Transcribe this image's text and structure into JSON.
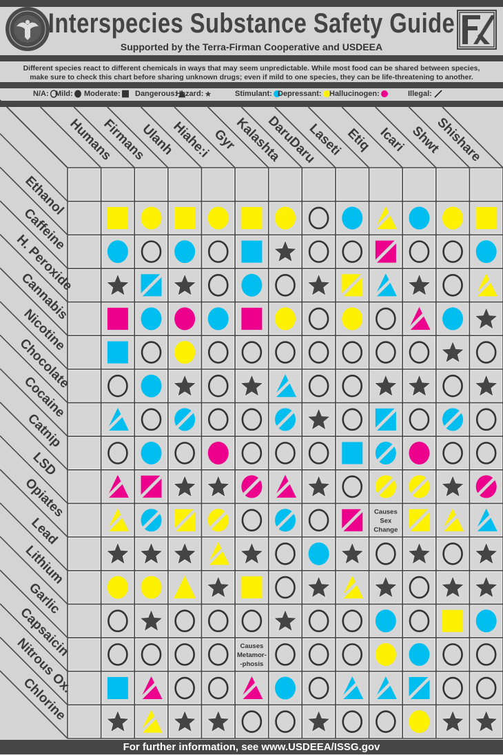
{
  "header": {
    "title": "Interspecies Substance Safety Guide",
    "subtitle": "Supported by the Terra-Firman Cooperative and USDEEA",
    "left_logo": "U.S. Department of Extraterrestrial Affairs seal",
    "right_logo": "TF monogram"
  },
  "description": {
    "line1": "Different species react to different chemicals in ways that may seem unpredictable. While most food can be shared between species,",
    "line2": "make sure to check this chart before sharing unknown drugs; even if mild to one species, they can be life-threatening to another."
  },
  "legend": {
    "levels": [
      {
        "label": "N/A:",
        "icon": "empty-circle"
      },
      {
        "label": "Mild:",
        "icon": "filled-circle"
      },
      {
        "label": "Moderate:",
        "icon": "filled-square"
      },
      {
        "label": "Dangerous:",
        "icon": "filled-triangle"
      },
      {
        "label": "Hazard:",
        "icon": "star"
      }
    ],
    "categories": [
      {
        "label": "Stimulant:",
        "color": "#00bff0"
      },
      {
        "label": "Depressant:",
        "color": "#fff200"
      },
      {
        "label": "Hallucinogen:",
        "color": "#ec008c"
      }
    ],
    "illegal": {
      "label": "Illegal:",
      "icon": "slash"
    }
  },
  "colors": {
    "stimulant": "#00bff0",
    "depressant": "#fff200",
    "hallucinogen": "#ec008c",
    "hazard": "#444444",
    "na": "#333333"
  },
  "footer": {
    "text": "For further information, see www.USDEEA/ISSG.gov"
  },
  "chart_data": {
    "type": "table",
    "columns": [
      "Humans",
      "Firmans",
      "Ulanh",
      "Hiahe:i",
      "Gyr",
      "Kalashta",
      "DaruDaru",
      "Laseti",
      "Etiq",
      "Icari",
      "Shwt",
      "Shishare"
    ],
    "rows": [
      {
        "substance": "Ethanol",
        "cells": [
          "moderate depressant",
          "mild depressant",
          "moderate depressant",
          "mild depressant",
          "moderate depressant",
          "mild depressant",
          "na",
          "mild stimulant",
          "dangerous depressant illegal",
          "mild stimulant",
          "mild depressant",
          "moderate depressant"
        ]
      },
      {
        "substance": "Caffeine",
        "cells": [
          "mild stimulant",
          "na",
          "mild stimulant",
          "na",
          "moderate stimulant",
          "hazard",
          "na",
          "na",
          "moderate hallucinogen illegal",
          "na",
          "na",
          "mild stimulant"
        ]
      },
      {
        "substance": "H. Peroxide",
        "cells": [
          "hazard",
          "moderate stimulant illegal",
          "hazard",
          "na",
          "mild stimulant",
          "na",
          "hazard",
          "moderate depressant illegal",
          "dangerous stimulant illegal",
          "hazard",
          "na",
          "dangerous depressant illegal"
        ]
      },
      {
        "substance": "Cannabis",
        "cells": [
          "moderate hallucinogen",
          "mild stimulant",
          "mild hallucinogen",
          "mild stimulant",
          "moderate hallucinogen",
          "mild depressant",
          "na",
          "mild depressant",
          "na",
          "dangerous hallucinogen illegal",
          "mild stimulant",
          "hazard"
        ]
      },
      {
        "substance": "Nicotine",
        "cells": [
          "moderate stimulant",
          "na",
          "mild depressant",
          "na",
          "na",
          "na",
          "na",
          "na",
          "na",
          "na",
          "hazard",
          "na"
        ]
      },
      {
        "substance": "Chocolate",
        "cells": [
          "na",
          "mild stimulant",
          "hazard",
          "na",
          "hazard",
          "dangerous stimulant illegal",
          "na",
          "na",
          "hazard",
          "hazard",
          "na",
          "hazard"
        ]
      },
      {
        "substance": "Cocaine",
        "cells": [
          "dangerous stimulant illegal",
          "na",
          "mild stimulant illegal",
          "na",
          "na",
          "mild stimulant illegal",
          "hazard",
          "na",
          "moderate stimulant illegal",
          "na",
          "mild stimulant illegal",
          "na"
        ]
      },
      {
        "substance": "Catnip",
        "cells": [
          "na",
          "mild stimulant",
          "na",
          "mild hallucinogen",
          "na",
          "na",
          "na",
          "moderate stimulant",
          "mild stimulant illegal",
          "mild hallucinogen",
          "na",
          "na"
        ]
      },
      {
        "substance": "LSD",
        "cells": [
          "dangerous hallucinogen illegal",
          "moderate hallucinogen illegal",
          "hazard",
          "hazard",
          "mild hallucinogen illegal",
          "dangerous hallucinogen illegal",
          "hazard",
          "na",
          "mild depressant illegal",
          "mild depressant illegal",
          "hazard",
          "mild hallucinogen illegal"
        ]
      },
      {
        "substance": "Opiates",
        "cells": [
          "dangerous depressant illegal",
          "mild stimulant illegal",
          "moderate depressant illegal",
          "mild depressant illegal",
          "na",
          "mild stimulant illegal",
          "na",
          "moderate hallucinogen illegal",
          {
            "note": [
              "Causes",
              "Sex",
              "Change"
            ]
          },
          "moderate depressant illegal",
          "dangerous depressant illegal",
          "dangerous stimulant illegal"
        ]
      },
      {
        "substance": "Lead",
        "cells": [
          "hazard",
          "hazard",
          "hazard",
          "dangerous depressant illegal",
          "hazard",
          "na",
          "mild stimulant",
          "hazard",
          "na",
          "hazard",
          "na",
          "hazard"
        ]
      },
      {
        "substance": "Lithium",
        "cells": [
          "mild depressant",
          "mild depressant",
          "dangerous depressant",
          "hazard",
          "moderate depressant",
          "na",
          "hazard",
          "dangerous depressant illegal",
          "hazard",
          "na",
          "hazard",
          "hazard"
        ]
      },
      {
        "substance": "Garlic",
        "cells": [
          "na",
          "hazard",
          "na",
          "na",
          "na",
          "hazard",
          "na",
          "na",
          "mild stimulant",
          "na",
          "moderate depressant",
          "mild stimulant"
        ]
      },
      {
        "substance": "Capsaicin",
        "cells": [
          "na",
          "na",
          "na",
          "na",
          {
            "note": [
              "Causes",
              "Metamor-",
              "-phosis"
            ]
          },
          "na",
          "na",
          "na",
          "mild depressant",
          "mild stimulant",
          "na",
          "na"
        ]
      },
      {
        "substance": "Nitrous Ox.",
        "cells": [
          "moderate stimulant",
          "dangerous hallucinogen illegal",
          "na",
          "na",
          "dangerous hallucinogen illegal",
          "mild stimulant",
          "na",
          "dangerous stimulant illegal",
          "dangerous stimulant illegal",
          "moderate stimulant illegal",
          "na",
          "na"
        ]
      },
      {
        "substance": "Chlorine",
        "cells": [
          "hazard",
          "dangerous depressant illegal",
          "hazard",
          "hazard",
          "na",
          "na",
          "hazard",
          "na",
          "na",
          "mild depressant",
          "hazard",
          "hazard"
        ]
      }
    ]
  }
}
